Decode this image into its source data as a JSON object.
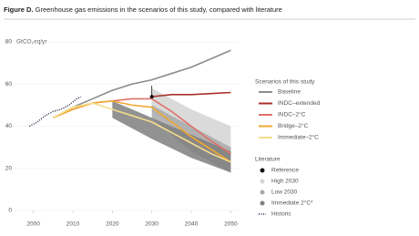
{
  "chart_data": {
    "type": "line",
    "title_label": "Figure D.",
    "title": "Greenhouse gas emissions in the scenarios of this study, compared with literature",
    "y_label": "GtCO₂eq/yr",
    "xlim": [
      1995,
      2052
    ],
    "xticks": [
      2000,
      2010,
      2020,
      2030,
      2040,
      2050
    ],
    "ylim": [
      0,
      80
    ],
    "yticks": [
      0,
      20,
      40,
      60,
      80
    ],
    "literature": {
      "title": "Literature",
      "series": [
        {
          "name": "Reference",
          "kind": "point",
          "color": "#111111",
          "x": [
            2030
          ],
          "values": [
            54
          ]
        },
        {
          "name": "High 2030",
          "kind": "band",
          "color": "#d4d4d4",
          "x": [
            2030,
            2040,
            2050
          ],
          "upper": [
            58,
            48,
            40
          ],
          "lower": [
            47,
            35,
            22
          ]
        },
        {
          "name": "Low 2030",
          "kind": "band",
          "color": "#a9a9a9",
          "x": [
            2030,
            2040,
            2050
          ],
          "upper": [
            50,
            40,
            30
          ],
          "lower": [
            44,
            28,
            18
          ]
        },
        {
          "name": "Immediate 2°C*",
          "kind": "band",
          "color": "#7f7f7f",
          "x": [
            2020,
            2030,
            2040,
            2050
          ],
          "upper": [
            52,
            44,
            36,
            28
          ],
          "lower": [
            44,
            34,
            25,
            18
          ]
        },
        {
          "name": "Historic",
          "kind": "dotted",
          "color": "#1f2a44",
          "x": [
            1999,
            2001,
            2003,
            2005,
            2007,
            2009,
            2011,
            2012
          ],
          "values": [
            40,
            42,
            45,
            47,
            48,
            50,
            53,
            54
          ]
        }
      ]
    },
    "scenarios": {
      "title": "Scenarios of this study",
      "series": [
        {
          "name": "Baseline",
          "kind": "line",
          "color": "#8c8c8c",
          "x": [
            2005,
            2010,
            2015,
            2020,
            2025,
            2030,
            2035,
            2040,
            2045,
            2050
          ],
          "values": [
            44,
            49,
            53,
            57,
            60,
            62,
            65,
            68,
            72,
            76
          ]
        },
        {
          "name": "INDC–extended",
          "kind": "line",
          "color": "#a8302c",
          "x": [
            2030,
            2035,
            2040,
            2045,
            2050
          ],
          "values": [
            54,
            55,
            55,
            55.5,
            56
          ]
        },
        {
          "name": "INDC–2°C",
          "kind": "line",
          "color": "#e0706a",
          "x": [
            2005,
            2010,
            2015,
            2020,
            2025,
            2030,
            2035,
            2040,
            2045,
            2050
          ],
          "values": [
            44,
            48,
            51,
            52,
            53,
            53,
            47,
            40,
            33,
            27
          ]
        },
        {
          "name": "Bridge–2°C",
          "kind": "line",
          "color": "#f0a830",
          "x": [
            2005,
            2010,
            2015,
            2020,
            2025,
            2030,
            2035,
            2040,
            2045,
            2050
          ],
          "values": [
            44,
            48,
            51,
            52,
            50,
            49,
            42,
            35,
            29,
            23
          ]
        },
        {
          "name": "Immediate–2°C",
          "kind": "line",
          "color": "#f6dc8c",
          "x": [
            2005,
            2010,
            2015,
            2020,
            2025,
            2030,
            2035,
            2040,
            2045,
            2050
          ],
          "values": [
            44,
            49,
            51,
            48,
            45,
            42,
            37,
            32,
            27,
            23
          ]
        }
      ]
    }
  }
}
